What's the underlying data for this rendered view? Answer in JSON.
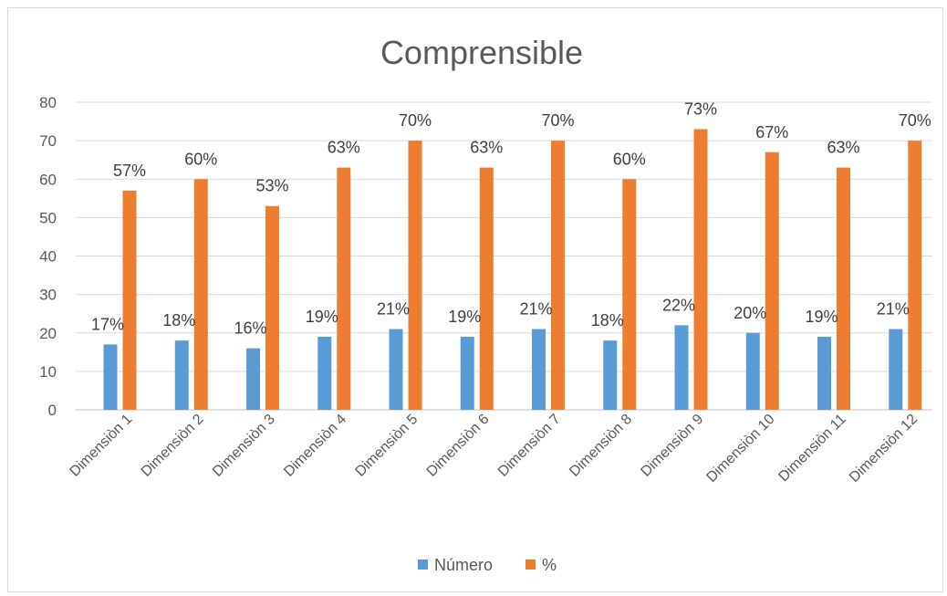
{
  "chart_data": {
    "type": "bar",
    "title": "Comprensible",
    "categories": [
      "Dimensiòn 1",
      "Dimensiòn 2",
      "Dimensiòn 3",
      "Dimensiòn 4",
      "Dimensiòn 5",
      "Dimensiòn 6",
      "Dimensiòn 7",
      "Dimensiòn 8",
      "Dimensiòn 9",
      "Dimensiòn 10",
      "Dimensiòn 11",
      "Dimensiòn 12"
    ],
    "series": [
      {
        "name": "Número",
        "color": "#5b9bd5",
        "values": [
          17,
          18,
          16,
          19,
          21,
          19,
          21,
          18,
          22,
          20,
          19,
          21
        ],
        "labels": [
          "17%",
          "18%",
          "16%",
          "19%",
          "21%",
          "19%",
          "21%",
          "18%",
          "22%",
          "20%",
          "19%",
          "21%"
        ]
      },
      {
        "name": "%",
        "color": "#ed7d31",
        "values": [
          57,
          60,
          53,
          63,
          70,
          63,
          70,
          60,
          73,
          67,
          63,
          70
        ],
        "labels": [
          "57%",
          "60%",
          "53%",
          "63%",
          "70%",
          "63%",
          "70%",
          "60%",
          "73%",
          "67%",
          "63%",
          "70%"
        ]
      }
    ],
    "yticks": [
      "0",
      "10",
      "20",
      "30",
      "40",
      "50",
      "60",
      "70",
      "80"
    ],
    "ylim": [
      0,
      80
    ],
    "grid": true,
    "legend": "bottom"
  }
}
